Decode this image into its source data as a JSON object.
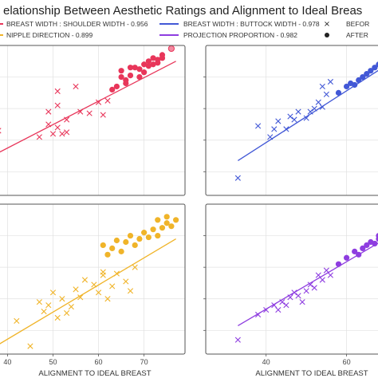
{
  "title": "elationship Between Aesthetic Ratings and Alignment to Ideal Breas",
  "legend": [
    {
      "label": "BREAST WIDTH : SHOULDER WIDTH - 0.956",
      "color": "#e8365a",
      "kind": "line"
    },
    {
      "label": "NIPPLE DIRECTION - 0.899",
      "color": "#f0b429",
      "kind": "line"
    },
    {
      "label": "BREAST WIDTH : BUTTOCK WIDTH - 0.978",
      "color": "#4258d6",
      "kind": "line"
    },
    {
      "label": "PROJECTION PROPORTION - 0.982",
      "color": "#8e3de0",
      "kind": "line"
    },
    {
      "label": "BEFOR",
      "color": "#222222",
      "kind": "x"
    },
    {
      "label": "AFTER",
      "color": "#222222",
      "kind": "dot"
    }
  ],
  "chart_data": [
    {
      "type": "scatter",
      "panel": "top-left",
      "color": "#e8365a",
      "xlim": [
        38,
        79
      ],
      "ylim": [
        5,
        100
      ],
      "xticks": [],
      "yticks": [],
      "xlabel": "",
      "fit": [
        [
          38,
          32
        ],
        [
          77,
          90
        ]
      ],
      "before": [
        [
          38,
          46
        ],
        [
          47,
          42
        ],
        [
          49,
          50
        ],
        [
          49,
          58
        ],
        [
          50,
          44
        ],
        [
          51,
          48
        ],
        [
          51,
          62
        ],
        [
          51,
          71
        ],
        [
          52,
          44
        ],
        [
          53,
          45
        ],
        [
          53,
          53
        ],
        [
          55,
          74
        ],
        [
          56,
          58
        ],
        [
          58,
          57
        ],
        [
          60,
          64
        ],
        [
          61,
          56
        ],
        [
          62,
          65
        ]
      ],
      "after": [
        [
          63,
          72
        ],
        [
          64,
          74
        ],
        [
          65,
          80
        ],
        [
          65,
          84
        ],
        [
          66,
          76
        ],
        [
          66,
          78
        ],
        [
          67,
          81
        ],
        [
          67,
          86
        ],
        [
          68,
          86
        ],
        [
          69,
          80
        ],
        [
          69,
          85
        ],
        [
          70,
          83
        ],
        [
          70,
          88
        ],
        [
          71,
          87
        ],
        [
          71,
          90
        ],
        [
          72,
          88
        ],
        [
          72,
          92
        ],
        [
          73,
          89
        ],
        [
          73,
          91
        ],
        [
          74,
          92
        ],
        [
          74,
          94
        ],
        [
          76,
          98
        ]
      ]
    },
    {
      "type": "scatter",
      "panel": "top-right",
      "color": "#4258d6",
      "xlim": [
        25,
        69
      ],
      "ylim": [
        5,
        100
      ],
      "xticks": [],
      "yticks": [],
      "xlabel": "",
      "fit": [
        [
          33,
          27
        ],
        [
          69,
          86
        ]
      ],
      "before": [
        [
          33,
          16
        ],
        [
          38,
          49
        ],
        [
          41,
          42
        ],
        [
          42,
          47
        ],
        [
          43,
          52
        ],
        [
          45,
          47
        ],
        [
          46,
          55
        ],
        [
          47,
          53
        ],
        [
          48,
          58
        ],
        [
          50,
          54
        ],
        [
          51,
          58
        ],
        [
          52,
          60
        ],
        [
          53,
          64
        ],
        [
          54,
          61
        ],
        [
          54,
          74
        ],
        [
          55,
          69
        ],
        [
          56,
          77
        ]
      ],
      "after": [
        [
          58,
          70
        ],
        [
          60,
          74
        ],
        [
          61,
          76
        ],
        [
          62,
          75
        ],
        [
          63,
          78
        ],
        [
          64,
          80
        ],
        [
          65,
          82
        ],
        [
          66,
          84
        ],
        [
          67,
          86
        ],
        [
          68,
          88
        ],
        [
          69,
          86
        ]
      ]
    },
    {
      "type": "scatter",
      "panel": "bottom-left",
      "color": "#f0b429",
      "xlim": [
        38,
        79
      ],
      "ylim": [
        5,
        100
      ],
      "xticks": [
        "40",
        "50",
        "60",
        "70"
      ],
      "yticks": [],
      "xlabel": "ALIGNMENT TO IDEAL BREAST",
      "fit": [
        [
          38,
          11
        ],
        [
          77,
          78
        ]
      ],
      "before": [
        [
          42,
          26
        ],
        [
          45,
          10
        ],
        [
          47,
          38
        ],
        [
          48,
          32
        ],
        [
          49,
          36
        ],
        [
          50,
          44
        ],
        [
          51,
          28
        ],
        [
          52,
          40
        ],
        [
          53,
          31
        ],
        [
          54,
          35
        ],
        [
          55,
          46
        ],
        [
          56,
          41
        ],
        [
          57,
          52
        ],
        [
          59,
          49
        ],
        [
          60,
          44
        ],
        [
          61,
          55
        ],
        [
          61,
          57
        ],
        [
          62,
          40
        ],
        [
          63,
          48
        ],
        [
          64,
          56
        ],
        [
          66,
          51
        ],
        [
          67,
          45
        ],
        [
          68,
          60
        ]
      ],
      "after": [
        [
          61,
          74
        ],
        [
          62,
          68
        ],
        [
          63,
          72
        ],
        [
          64,
          77
        ],
        [
          65,
          70
        ],
        [
          66,
          76
        ],
        [
          67,
          80
        ],
        [
          68,
          74
        ],
        [
          69,
          78
        ],
        [
          70,
          82
        ],
        [
          71,
          79
        ],
        [
          72,
          84
        ],
        [
          73,
          80
        ],
        [
          74,
          85
        ],
        [
          75,
          88
        ],
        [
          76,
          86
        ],
        [
          77,
          90
        ],
        [
          75,
          92
        ],
        [
          73,
          90
        ]
      ]
    },
    {
      "type": "scatter",
      "panel": "bottom-right",
      "color": "#8e3de0",
      "xlim": [
        25,
        69
      ],
      "ylim": [
        5,
        100
      ],
      "xticks": [
        "40",
        "60"
      ],
      "yticks": [],
      "xlabel": "ALIGNMENT TO IDEAL BREAST",
      "fit": [
        [
          33,
          23
        ],
        [
          69,
          77
        ]
      ],
      "before": [
        [
          33,
          14
        ],
        [
          38,
          30
        ],
        [
          40,
          33
        ],
        [
          42,
          36
        ],
        [
          43,
          33
        ],
        [
          44,
          38
        ],
        [
          45,
          36
        ],
        [
          46,
          41
        ],
        [
          47,
          44
        ],
        [
          48,
          42
        ],
        [
          49,
          38
        ],
        [
          50,
          45
        ],
        [
          51,
          49
        ],
        [
          52,
          47
        ],
        [
          53,
          55
        ],
        [
          54,
          52
        ],
        [
          55,
          58
        ],
        [
          56,
          55
        ]
      ],
      "after": [
        [
          58,
          62
        ],
        [
          60,
          66
        ],
        [
          62,
          70
        ],
        [
          63,
          68
        ],
        [
          64,
          72
        ],
        [
          65,
          74
        ],
        [
          66,
          76
        ],
        [
          67,
          75
        ],
        [
          68,
          78
        ],
        [
          69,
          76
        ],
        [
          68,
          80
        ]
      ]
    }
  ]
}
